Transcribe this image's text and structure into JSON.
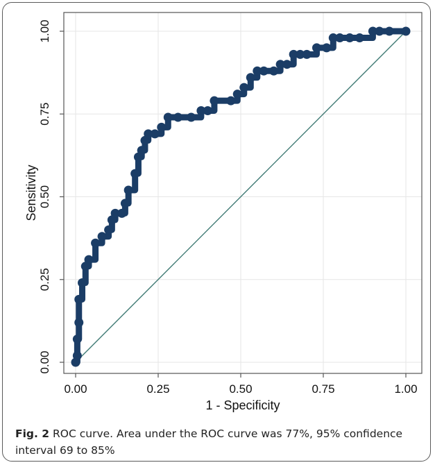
{
  "caption": {
    "label": "Fig. 2",
    "text": " ROC curve. Area under the ROC curve was 77%, 95% confidence interval 69 to 85%"
  },
  "colors": {
    "curve": "#1b3d66",
    "reference_line": "#3f7a74",
    "grid": "#e6e6e6",
    "axis": "#555555"
  },
  "chart_data": {
    "type": "line",
    "title": "",
    "xlabel": "1 - Specificity",
    "ylabel": "Sensitivity",
    "xlim": [
      0,
      1
    ],
    "ylim": [
      0,
      1
    ],
    "grid": true,
    "x_ticks": [
      "0.00",
      "0.25",
      "0.50",
      "0.75",
      "1.00"
    ],
    "y_ticks": [
      "0.00",
      "0.25",
      "0.50",
      "0.75",
      "1.00"
    ],
    "series": [
      {
        "type": "step-markers",
        "x": [
          0.0,
          0.005,
          0.005,
          0.01,
          0.01,
          0.02,
          0.03,
          0.04,
          0.06,
          0.08,
          0.1,
          0.11,
          0.12,
          0.14,
          0.15,
          0.16,
          0.18,
          0.19,
          0.2,
          0.21,
          0.22,
          0.24,
          0.26,
          0.28,
          0.31,
          0.35,
          0.38,
          0.4,
          0.42,
          0.47,
          0.49,
          0.51,
          0.53,
          0.55,
          0.57,
          0.6,
          0.62,
          0.64,
          0.66,
          0.68,
          0.7,
          0.73,
          0.76,
          0.78,
          0.8,
          0.83,
          0.86,
          0.9,
          0.92,
          0.95,
          1.0
        ],
        "y": [
          0.0,
          0.02,
          0.07,
          0.12,
          0.19,
          0.24,
          0.29,
          0.31,
          0.36,
          0.38,
          0.4,
          0.43,
          0.45,
          0.45,
          0.48,
          0.52,
          0.57,
          0.62,
          0.64,
          0.67,
          0.69,
          0.69,
          0.71,
          0.74,
          0.74,
          0.74,
          0.76,
          0.76,
          0.79,
          0.79,
          0.81,
          0.83,
          0.86,
          0.88,
          0.88,
          0.88,
          0.9,
          0.9,
          0.93,
          0.93,
          0.93,
          0.95,
          0.95,
          0.98,
          0.98,
          0.98,
          0.98,
          1.0,
          1.0,
          1.0,
          1.0
        ]
      },
      {
        "type": "reference-line",
        "x": [
          0,
          1
        ],
        "y": [
          0,
          1
        ]
      }
    ]
  }
}
